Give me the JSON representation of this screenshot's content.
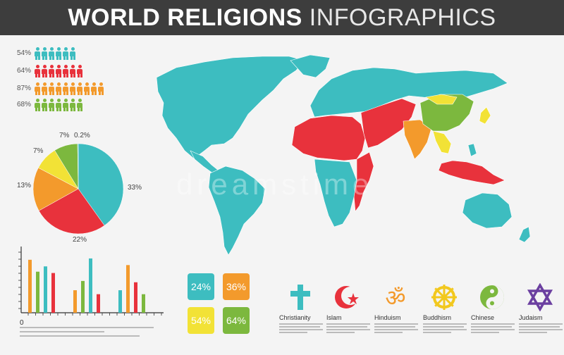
{
  "header": {
    "title_bold": "WORLD RELIGIONS",
    "title_light": "INFOGRAPHICS"
  },
  "people_rows": [
    {
      "pct": "54%",
      "count": 6,
      "color": "#3dbdc0"
    },
    {
      "pct": "64%",
      "count": 7,
      "color": "#e8323c"
    },
    {
      "pct": "87%",
      "count": 10,
      "color": "#f39a2c"
    },
    {
      "pct": "68%",
      "count": 7,
      "color": "#7cb83e"
    }
  ],
  "colors": {
    "teal": "#3dbdc0",
    "red": "#e8323c",
    "orange": "#f39a2c",
    "yellow": "#f2e236",
    "green": "#7cb83e",
    "purple": "#6b3fa0",
    "header_bg": "#3d3d3d"
  },
  "chart_data": [
    {
      "type": "pie",
      "labels": [
        "33%",
        "22%",
        "13%",
        "7%",
        "7%",
        "0.2%"
      ],
      "values": [
        33,
        22,
        13,
        7,
        7,
        0.2
      ],
      "colors": [
        "#3dbdc0",
        "#e8323c",
        "#f39a2c",
        "#f2e236",
        "#7cb83e",
        "#3dbdc0"
      ]
    },
    {
      "type": "bar",
      "xlabel_zero": "0",
      "groups": [
        [
          {
            "value": 80,
            "color": "#f39a2c"
          },
          {
            "value": 62,
            "color": "#7cb83e"
          },
          {
            "value": 70,
            "color": "#3dbdc0"
          },
          {
            "value": 60,
            "color": "#e8323c"
          }
        ],
        [
          {
            "value": 34,
            "color": "#f39a2c"
          },
          {
            "value": 48,
            "color": "#7cb83e"
          },
          {
            "value": 82,
            "color": "#3dbdc0"
          },
          {
            "value": 28,
            "color": "#e8323c"
          }
        ],
        [
          {
            "value": 34,
            "color": "#3dbdc0"
          },
          {
            "value": 72,
            "color": "#f39a2c"
          },
          {
            "value": 46,
            "color": "#e8323c"
          },
          {
            "value": 28,
            "color": "#7cb83e"
          }
        ]
      ],
      "ymax": 100
    }
  ],
  "stat_boxes": [
    {
      "value": "24%",
      "color": "#3dbdc0"
    },
    {
      "value": "36%",
      "color": "#f39a2c"
    },
    {
      "value": "54%",
      "color": "#f2e236"
    },
    {
      "value": "64%",
      "color": "#7cb83e"
    }
  ],
  "religions": [
    {
      "name": "Christianity",
      "icon": "cross-icon",
      "color": "#3dbdc0"
    },
    {
      "name": "Islam",
      "icon": "crescent-star-icon",
      "color": "#e8323c"
    },
    {
      "name": "Hinduism",
      "icon": "om-icon",
      "color": "#f39a2c"
    },
    {
      "name": "Buddhism",
      "icon": "dharma-wheel-icon",
      "color": "#f2c81e"
    },
    {
      "name": "Chinese",
      "icon": "yin-yang-icon",
      "color": "#7cb83e"
    },
    {
      "name": "Judaism",
      "icon": "star-of-david-icon",
      "color": "#6b3fa0"
    }
  ],
  "watermark": "dreamstime"
}
